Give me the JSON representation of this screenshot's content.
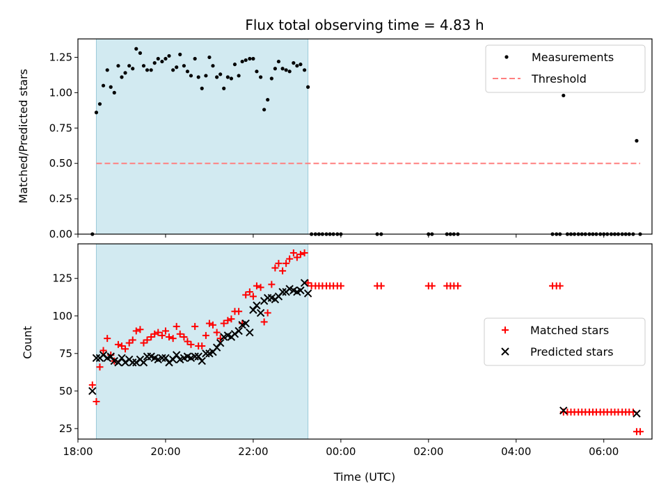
{
  "chart_data": [
    {
      "type": "scatter",
      "panel": "top",
      "title": "Flux total observing time = 4.83 h",
      "xlabel": "",
      "ylabel": "Matched/Predicted stars",
      "x_unit": "hours since 18:00 UTC",
      "xlim": [
        18.0,
        31.1
      ],
      "ylim": [
        0.0,
        1.38
      ],
      "x_ticks": [
        18,
        20,
        22,
        24,
        26,
        28,
        30
      ],
      "y_ticks": [
        0.0,
        0.25,
        0.5,
        0.75,
        1.0,
        1.25
      ],
      "y_tick_labels": [
        "0.00",
        "0.25",
        "0.50",
        "0.75",
        "1.00",
        "1.25"
      ],
      "shaded_region": [
        18.42,
        23.25
      ],
      "shade_color": "#add8e6",
      "legend_position": "upper right",
      "series": [
        {
          "name": "Measurements",
          "kind": "points",
          "color": "#000000",
          "x": [
            18.33,
            18.42,
            18.5,
            18.58,
            18.67,
            18.75,
            18.83,
            18.92,
            19.0,
            19.08,
            19.17,
            19.25,
            19.33,
            19.42,
            19.5,
            19.58,
            19.67,
            19.75,
            19.83,
            19.92,
            20.0,
            20.08,
            20.17,
            20.25,
            20.33,
            20.42,
            20.5,
            20.58,
            20.67,
            20.75,
            20.83,
            20.92,
            21.0,
            21.08,
            21.17,
            21.25,
            21.33,
            21.42,
            21.5,
            21.58,
            21.67,
            21.75,
            21.83,
            21.92,
            22.0,
            22.08,
            22.17,
            22.25,
            22.33,
            22.42,
            22.5,
            22.58,
            22.67,
            22.75,
            22.83,
            22.92,
            23.0,
            23.08,
            23.17,
            23.25,
            23.33,
            23.42,
            23.5,
            23.58,
            23.67,
            23.75,
            23.83,
            23.92,
            24.0,
            24.83,
            24.92,
            26.0,
            26.08,
            26.42,
            26.5,
            26.58,
            26.67,
            28.83,
            28.92,
            29.0,
            29.08,
            29.17,
            29.25,
            29.33,
            29.42,
            29.5,
            29.58,
            29.67,
            29.75,
            29.83,
            29.92,
            30.0,
            30.08,
            30.17,
            30.25,
            30.33,
            30.42,
            30.5,
            30.58,
            30.67,
            30.75,
            30.83
          ],
          "y": [
            0.0,
            0.86,
            0.92,
            1.05,
            1.16,
            1.04,
            1.0,
            1.19,
            1.11,
            1.14,
            1.19,
            1.17,
            1.31,
            1.28,
            1.19,
            1.16,
            1.16,
            1.21,
            1.24,
            1.22,
            1.24,
            1.26,
            1.16,
            1.18,
            1.27,
            1.19,
            1.15,
            1.12,
            1.24,
            1.11,
            1.03,
            1.12,
            1.25,
            1.19,
            1.11,
            1.13,
            1.03,
            1.11,
            1.1,
            1.2,
            1.12,
            1.22,
            1.23,
            1.24,
            1.24,
            1.15,
            1.11,
            0.88,
            0.95,
            1.1,
            1.17,
            1.22,
            1.17,
            1.16,
            1.15,
            1.21,
            1.19,
            1.2,
            1.16,
            1.04,
            0.0,
            0.0,
            0.0,
            0.0,
            0.0,
            0.0,
            0.0,
            0.0,
            0.0,
            0.0,
            0.0,
            0.0,
            0.0,
            0.0,
            0.0,
            0.0,
            0.0,
            0.0,
            0.0,
            0.0,
            0.98,
            0.0,
            0.0,
            0.0,
            0.0,
            0.0,
            0.0,
            0.0,
            0.0,
            0.0,
            0.0,
            0.0,
            0.0,
            0.0,
            0.0,
            0.0,
            0.0,
            0.0,
            0.0,
            0.0,
            0.66,
            0.0
          ]
        },
        {
          "name": "Threshold",
          "kind": "dashed-line",
          "color": "#ff7f7f",
          "x": [
            18.42,
            30.83
          ],
          "y": [
            0.5,
            0.5
          ]
        }
      ]
    },
    {
      "type": "scatter",
      "panel": "bottom",
      "title": "",
      "xlabel": "Time (UTC)",
      "ylabel": "Count",
      "x_unit": "hours since 18:00 UTC",
      "xlim": [
        18.0,
        31.1
      ],
      "ylim": [
        18,
        148
      ],
      "x_ticks": [
        18,
        20,
        22,
        24,
        26,
        28,
        30
      ],
      "x_tick_labels": [
        "18:00",
        "20:00",
        "22:00",
        "00:00",
        "02:00",
        "04:00",
        "06:00"
      ],
      "y_ticks": [
        25,
        50,
        75,
        100,
        125
      ],
      "y_tick_labels": [
        "25",
        "50",
        "75",
        "100",
        "125"
      ],
      "shaded_region": [
        18.42,
        23.25
      ],
      "shade_color": "#add8e6",
      "legend_position": "center right",
      "series": [
        {
          "name": "Matched stars",
          "kind": "plus",
          "color": "#ff0000",
          "x": [
            18.33,
            18.42,
            18.5,
            18.58,
            18.67,
            18.75,
            18.83,
            18.92,
            19.0,
            19.08,
            19.17,
            19.25,
            19.33,
            19.42,
            19.5,
            19.58,
            19.67,
            19.75,
            19.83,
            19.92,
            20.0,
            20.08,
            20.17,
            20.25,
            20.33,
            20.42,
            20.5,
            20.58,
            20.67,
            20.75,
            20.83,
            20.92,
            21.0,
            21.08,
            21.17,
            21.25,
            21.33,
            21.42,
            21.5,
            21.58,
            21.67,
            21.75,
            21.83,
            21.92,
            22.0,
            22.08,
            22.17,
            22.25,
            22.33,
            22.42,
            22.5,
            22.58,
            22.67,
            22.75,
            22.83,
            22.92,
            23.0,
            23.08,
            23.17,
            23.25,
            23.33,
            23.42,
            23.5,
            23.58,
            23.67,
            23.75,
            23.83,
            23.92,
            24.0,
            24.83,
            24.92,
            26.0,
            26.08,
            26.42,
            26.5,
            26.58,
            26.67,
            28.83,
            28.92,
            29.0,
            29.08,
            29.17,
            29.25,
            29.33,
            29.42,
            29.5,
            29.58,
            29.67,
            29.75,
            29.83,
            29.92,
            30.0,
            30.08,
            30.17,
            30.25,
            30.33,
            30.42,
            30.5,
            30.58,
            30.67,
            30.75,
            30.83
          ],
          "y": [
            54,
            43,
            66,
            77,
            85,
            74,
            70,
            81,
            80,
            78,
            82,
            84,
            90,
            91,
            82,
            84,
            86,
            88,
            89,
            87,
            90,
            86,
            85,
            93,
            88,
            86,
            83,
            81,
            93,
            80,
            80,
            87,
            95,
            94,
            89,
            85,
            95,
            97,
            98,
            103,
            103,
            95,
            114,
            116,
            113,
            120,
            119,
            96,
            102,
            121,
            132,
            135,
            130,
            135,
            138,
            142,
            139,
            141,
            142,
            122,
            120,
            120,
            120,
            120,
            120,
            120,
            120,
            120,
            120,
            120,
            120,
            120,
            120,
            120,
            120,
            120,
            120,
            120,
            120,
            120,
            36,
            36,
            36,
            36,
            36,
            36,
            36,
            36,
            36,
            36,
            36,
            36,
            36,
            36,
            36,
            36,
            36,
            36,
            36,
            36,
            23,
            23
          ]
        },
        {
          "name": "Predicted stars",
          "kind": "x",
          "color": "#000000",
          "x": [
            18.33,
            18.42,
            18.5,
            18.58,
            18.67,
            18.75,
            18.83,
            18.92,
            19.0,
            19.08,
            19.17,
            19.25,
            19.33,
            19.42,
            19.5,
            19.58,
            19.67,
            19.75,
            19.83,
            19.92,
            20.0,
            20.08,
            20.17,
            20.25,
            20.33,
            20.42,
            20.5,
            20.58,
            20.67,
            20.75,
            20.83,
            20.92,
            21.0,
            21.08,
            21.17,
            21.25,
            21.33,
            21.42,
            21.5,
            21.58,
            21.67,
            21.75,
            21.83,
            21.92,
            22.0,
            22.08,
            22.17,
            22.25,
            22.33,
            22.42,
            22.5,
            22.58,
            22.67,
            22.75,
            22.83,
            22.92,
            23.0,
            23.08,
            23.17,
            23.25,
            29.08,
            30.75
          ],
          "y": [
            50,
            72,
            72,
            74,
            72,
            73,
            70,
            69,
            72,
            69,
            71,
            69,
            69,
            71,
            69,
            73,
            73,
            72,
            71,
            72,
            72,
            69,
            71,
            74,
            71,
            72,
            73,
            72,
            73,
            73,
            70,
            75,
            75,
            76,
            79,
            82,
            86,
            87,
            86,
            88,
            90,
            94,
            95,
            89,
            104,
            107,
            102,
            110,
            112,
            112,
            111,
            113,
            116,
            116,
            118,
            117,
            116,
            117,
            122,
            115,
            37,
            35
          ]
        }
      ]
    }
  ]
}
